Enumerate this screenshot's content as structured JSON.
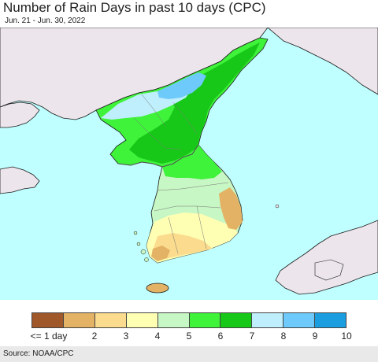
{
  "header": {
    "title": "Number of Rain Days in past 10 days (CPC)",
    "subtitle": "Jun. 21 - Jun. 30, 2022"
  },
  "legend": {
    "items": [
      {
        "label": "<= 1 day",
        "color": "#a0582b"
      },
      {
        "label": "2",
        "color": "#e3b264"
      },
      {
        "label": "3",
        "color": "#fbdc8e"
      },
      {
        "label": "4",
        "color": "#ffffb4"
      },
      {
        "label": "5",
        "color": "#c7f7c4"
      },
      {
        "label": "6",
        "color": "#3ff23a"
      },
      {
        "label": "7",
        "color": "#18c818"
      },
      {
        "label": "8",
        "color": "#bfeefc"
      },
      {
        "label": "9",
        "color": "#6ecafa"
      },
      {
        "label": "10",
        "color": "#1a9ee0"
      }
    ]
  },
  "map": {
    "sea_color": "#bfffff",
    "land_outside_color": "#ece6ec",
    "coastline_color": "#1a1a1a",
    "border_color": "#555555"
  },
  "footer": {
    "source": "Source: NOAA/CPC"
  }
}
